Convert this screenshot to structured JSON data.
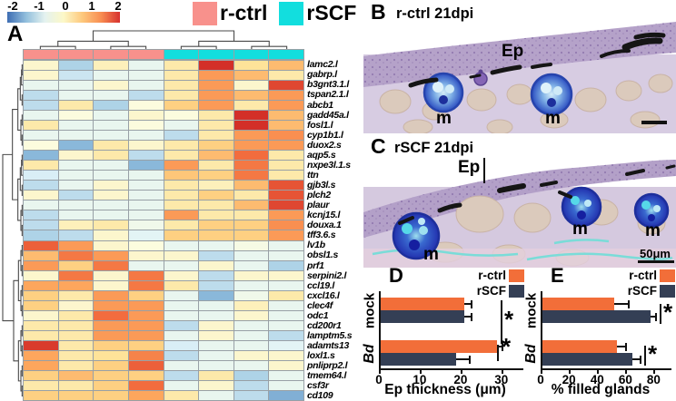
{
  "panel_a": {
    "label": "A",
    "scale_ticks": [
      "-2",
      "-1",
      "0",
      "1",
      "2"
    ],
    "scale_colors": [
      "#3E6DB3",
      "#92BFDC",
      "#E4F2F0",
      "#FCF8C8",
      "#FDC87C",
      "#F88D51",
      "#D7312E"
    ],
    "legend": [
      {
        "label": "r-ctrl",
        "color": "#F8918C"
      },
      {
        "label": "rSCF",
        "color": "#12DEDE"
      }
    ]
  },
  "panel_b": {
    "label": "B",
    "title": "r-ctrl 21dpi",
    "ep": "Ep",
    "m": [
      "m",
      "m"
    ]
  },
  "panel_c": {
    "label": "C",
    "title": "rSCF 21dpi",
    "ep": "Ep",
    "m": [
      "m",
      "m",
      "m"
    ],
    "scalebar": "50μm"
  },
  "panel_d": {
    "label": "D",
    "sig": [
      "*",
      "*"
    ]
  },
  "panel_e": {
    "label": "E",
    "sig": [
      "*",
      "*"
    ]
  },
  "chart_data": [
    {
      "type": "heatmap",
      "rows": [
        "lamc2.l",
        "gabrp.l",
        "b3gnt3.1.l",
        "tspan2.1.l",
        "abcb1",
        "gadd45a.l",
        "fosl1.l",
        "cyp1b1.l",
        "duox2.s",
        "aqp5.s",
        "nxpe3l.1.s",
        "ttn",
        "gjb3l.s",
        "plch2",
        "plaur",
        "kcnj15.l",
        "douxa.1",
        "tff3.6.s",
        "lv1b",
        "obsl1.s",
        "prf1",
        "serpini2.l",
        "ccl19.l",
        "cxcl16.l",
        "clec4f",
        "odc1",
        "cd200r1",
        "lamptm5.s",
        "adamts13",
        "loxl1.s",
        "pnliprp2.l",
        "tmem64.l",
        "csf3r",
        "cd109"
      ],
      "column_groups": [
        "r-ctrl",
        "r-ctrl",
        "r-ctrl",
        "r-ctrl",
        "rSCF",
        "rSCF",
        "rSCF",
        "rSCF"
      ],
      "scale": {
        "min": -2,
        "max": 2,
        "ticks": [
          -2,
          -1,
          0,
          1,
          2
        ]
      },
      "values": [
        [
          0.1,
          -0.8,
          0.2,
          -0.3,
          0.3,
          2.0,
          0.4,
          0.8
        ],
        [
          0.1,
          -0.6,
          -0.3,
          -0.3,
          0.3,
          1.1,
          0.8,
          0.3
        ],
        [
          -0.3,
          -0.3,
          0.1,
          -0.3,
          0.3,
          1.1,
          0.1,
          1.8
        ],
        [
          -0.7,
          -0.3,
          -0.3,
          -0.7,
          0.3,
          1.1,
          0.8,
          1.1
        ],
        [
          -0.7,
          0.3,
          -0.8,
          0.0,
          0.6,
          1.1,
          0.3,
          1.1
        ],
        [
          -0.3,
          0.0,
          -0.3,
          0.1,
          0.0,
          0.3,
          2.0,
          0.8
        ],
        [
          0.3,
          -0.3,
          -0.3,
          0.0,
          -0.3,
          0.3,
          2.0,
          0.8
        ],
        [
          -0.3,
          -0.3,
          -0.3,
          -0.3,
          -0.7,
          0.3,
          1.1,
          1.2
        ],
        [
          0.0,
          -1.1,
          0.3,
          0.1,
          0.3,
          0.6,
          1.1,
          1.1
        ],
        [
          -1.1,
          0.1,
          0.3,
          -0.7,
          0.3,
          0.8,
          1.5,
          0.3
        ],
        [
          0.3,
          -0.3,
          -0.3,
          -1.1,
          1.1,
          0.3,
          1.4,
          0.3
        ],
        [
          -0.5,
          -0.3,
          -0.3,
          -0.3,
          0.7,
          0.6,
          1.4,
          0.3
        ],
        [
          -0.7,
          -0.3,
          0.1,
          -0.3,
          0.3,
          0.2,
          0.8,
          1.7
        ],
        [
          0.1,
          -0.7,
          0.1,
          -0.3,
          0.3,
          0.6,
          0.3,
          1.7
        ],
        [
          -0.3,
          -0.3,
          -0.3,
          -0.3,
          0.3,
          0.3,
          0.8,
          1.8
        ],
        [
          -0.7,
          -0.3,
          -0.3,
          -0.3,
          1.1,
          0.3,
          0.3,
          1.1
        ],
        [
          -0.7,
          0.2,
          0.3,
          -0.2,
          0.3,
          0.6,
          0.6,
          1.2
        ],
        [
          -0.8,
          -0.7,
          0.1,
          -0.4,
          0.6,
          0.6,
          0.6,
          1.1
        ],
        [
          1.6,
          1.1,
          0.1,
          0.0,
          -0.3,
          -0.3,
          -0.1,
          -0.3
        ],
        [
          0.8,
          1.4,
          1.1,
          0.1,
          0.1,
          -0.7,
          -0.3,
          -0.3
        ],
        [
          1.1,
          0.6,
          1.4,
          -0.3,
          -0.3,
          0.1,
          -0.3,
          -0.8
        ],
        [
          0.1,
          1.4,
          0.1,
          1.4,
          0.1,
          -0.7,
          0.1,
          0.1
        ],
        [
          1.0,
          1.0,
          0.1,
          1.4,
          0.3,
          -0.7,
          -0.3,
          -0.3
        ],
        [
          0.6,
          0.3,
          1.1,
          0.6,
          -0.3,
          -1.1,
          -0.2,
          0.3
        ],
        [
          0.6,
          0.1,
          1.1,
          1.1,
          -0.3,
          -0.3,
          0.2,
          -0.3
        ],
        [
          0.1,
          0.3,
          1.5,
          1.1,
          -0.3,
          -0.3,
          0.1,
          -0.3
        ],
        [
          0.3,
          0.3,
          1.1,
          1.1,
          -0.7,
          0.1,
          -0.3,
          -0.3
        ],
        [
          0.3,
          0.3,
          1.1,
          1.1,
          -0.3,
          0.1,
          -0.3,
          -0.7
        ],
        [
          1.9,
          0.3,
          0.6,
          0.6,
          -0.5,
          -0.3,
          -0.3,
          -0.4
        ],
        [
          1.0,
          0.3,
          0.4,
          1.3,
          -0.7,
          -0.3,
          0.1,
          0.1
        ],
        [
          1.0,
          0.3,
          0.6,
          1.6,
          -0.3,
          -0.3,
          -0.3,
          0.1
        ],
        [
          0.6,
          0.8,
          0.6,
          0.6,
          -0.7,
          0.3,
          -0.8,
          -0.3
        ],
        [
          0.3,
          0.3,
          0.6,
          1.5,
          -0.3,
          0.1,
          -0.7,
          -0.3
        ],
        [
          0.6,
          0.6,
          0.6,
          1.0,
          0.3,
          -0.3,
          -0.7,
          -1.2
        ]
      ]
    },
    {
      "type": "bar",
      "orientation": "horizontal",
      "categories": [
        "mock",
        "Bd"
      ],
      "series": [
        {
          "name": "r-ctrl",
          "color": "#F26E39",
          "values": [
            21,
            29
          ],
          "errors": [
            1.5,
            1.0
          ]
        },
        {
          "name": "rSCF",
          "color": "#343F55",
          "values": [
            21,
            19
          ],
          "errors": [
            1.5,
            3.0
          ]
        }
      ],
      "xlabel": "Ep thickness (μm)",
      "xlim": [
        0,
        34.5
      ],
      "xticks": [
        0,
        10,
        20,
        30
      ],
      "significance": [
        "*",
        "*"
      ]
    },
    {
      "type": "bar",
      "orientation": "horizontal",
      "categories": [
        "mock",
        "Bd"
      ],
      "series": [
        {
          "name": "r-ctrl",
          "color": "#F26E39",
          "values": [
            52,
            54
          ],
          "errors": [
            10,
            6
          ]
        },
        {
          "name": "rSCF",
          "color": "#343F55",
          "values": [
            78,
            65
          ],
          "errors": [
            3,
            5
          ]
        }
      ],
      "xlabel": "% filled glands",
      "xlim": [
        0,
        90
      ],
      "xticks": [
        0,
        20,
        40,
        60,
        80
      ],
      "significance": [
        "*",
        "*"
      ]
    }
  ]
}
